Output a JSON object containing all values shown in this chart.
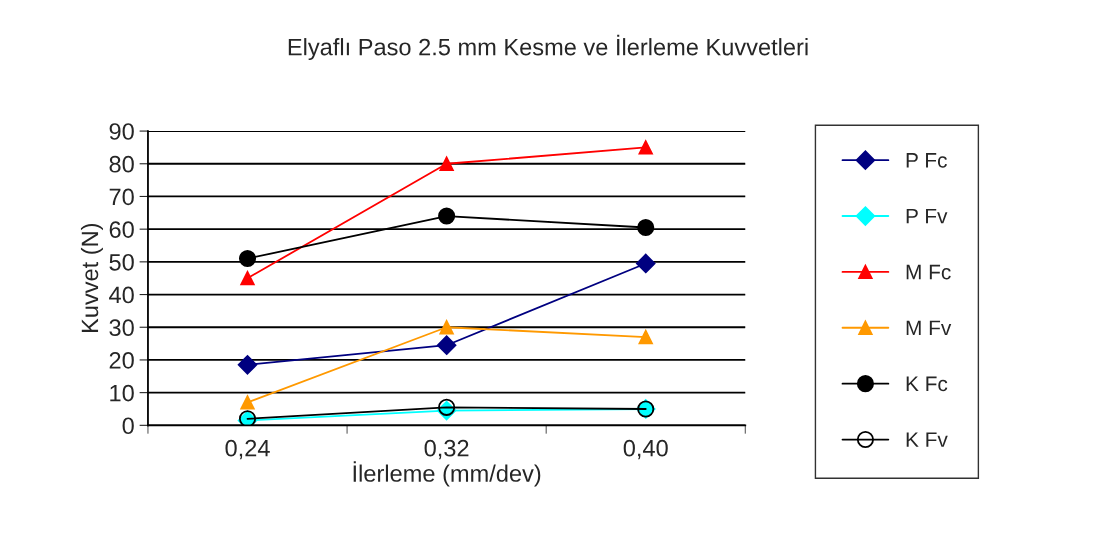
{
  "chart_data": {
    "type": "line",
    "title": "Elyaflı Paso 2.5 mm Kesme ve İlerleme Kuvvetleri",
    "xlabel": "İlerleme (mm/dev)",
    "ylabel": "Kuvvet (N)",
    "categories": [
      "0,24",
      "0,32",
      "0,40"
    ],
    "ylim": [
      0,
      90
    ],
    "yticks": [
      0,
      10,
      20,
      30,
      40,
      50,
      60,
      70,
      80,
      90
    ],
    "grid": "y",
    "legend": "right",
    "line_style": "solid",
    "series": [
      {
        "name": "P Fc",
        "color": "#000080",
        "marker": "diamond",
        "values": [
          18.5,
          24.5,
          49.5
        ]
      },
      {
        "name": "P Fv",
        "color": "#00ffff",
        "marker": "diamond",
        "values": [
          1.5,
          4.5,
          5
        ]
      },
      {
        "name": "M Fc",
        "color": "#ff0000",
        "marker": "triangle",
        "values": [
          45,
          80,
          85
        ]
      },
      {
        "name": "M Fv",
        "color": "#ff9900",
        "marker": "triangle",
        "values": [
          7,
          30,
          27
        ]
      },
      {
        "name": "K Fc",
        "color": "#000000",
        "marker": "circle",
        "values": [
          51,
          64,
          60.5
        ]
      },
      {
        "name": "K Fv",
        "color": "#000000",
        "marker": "circle_open",
        "values": [
          2,
          5.5,
          5
        ]
      }
    ]
  }
}
